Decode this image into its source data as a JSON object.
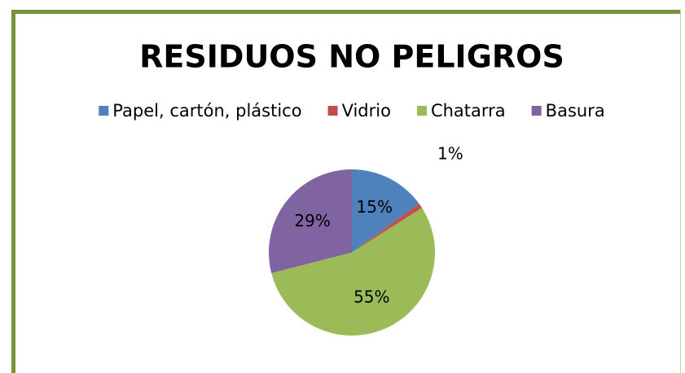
{
  "chart_data": {
    "type": "pie",
    "title": "RESIDUOS NO PELIGROS",
    "categories": [
      "Papel, cartón, plástico",
      "Vidrio",
      "Chatarra",
      "Basura"
    ],
    "values": [
      15,
      1,
      55,
      29
    ],
    "value_labels": [
      "15%",
      "1%",
      "55%",
      "29%"
    ],
    "colors": [
      "#4f81bd",
      "#c0504d",
      "#9bbb59",
      "#8064a2"
    ],
    "legend": "top"
  }
}
